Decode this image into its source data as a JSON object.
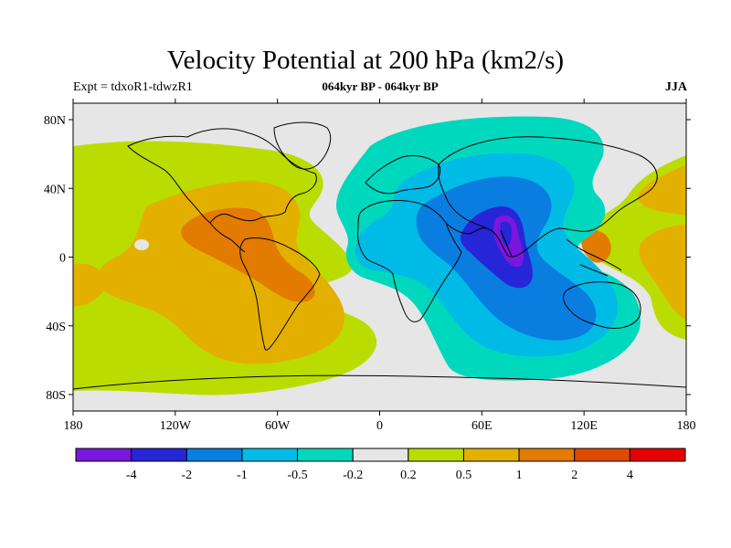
{
  "title": "Velocity Potential at 200 hPa (km2/s)",
  "subtitle_left": "Expt = tdxoR1-tdwzR1",
  "subtitle_center": "064kyr BP - 064kyr BP",
  "subtitle_right": "JJA",
  "y_ticks": [
    "80N",
    "40N",
    "0",
    "40S",
    "80S"
  ],
  "x_ticks": [
    "180",
    "120W",
    "60W",
    "0",
    "60E",
    "120E",
    "180"
  ],
  "colorbar": {
    "colors": [
      "#7b16dd",
      "#2626d8",
      "#0a7de0",
      "#00bbe6",
      "#00d8be",
      "#e6e6e6",
      "#bbdc00",
      "#e3b000",
      "#e27b00",
      "#e04a00",
      "#e60000"
    ],
    "labels": [
      "-4",
      "-2",
      "-1",
      "-0.5",
      "-0.2",
      "0.2",
      "0.5",
      "1",
      "2",
      "4"
    ]
  },
  "map": {
    "background_color": "#e6e6e6",
    "regions": [
      {
        "name": "positive-0.5",
        "color": "#bbdc00"
      },
      {
        "name": "positive-1",
        "color": "#e3b000"
      },
      {
        "name": "positive-2",
        "color": "#e27b00"
      },
      {
        "name": "negative-0.2",
        "color": "#00d8be"
      },
      {
        "name": "negative-0.5",
        "color": "#00bbe6"
      },
      {
        "name": "negative-1",
        "color": "#0a7de0"
      },
      {
        "name": "negative-2",
        "color": "#2626d8"
      }
    ]
  }
}
